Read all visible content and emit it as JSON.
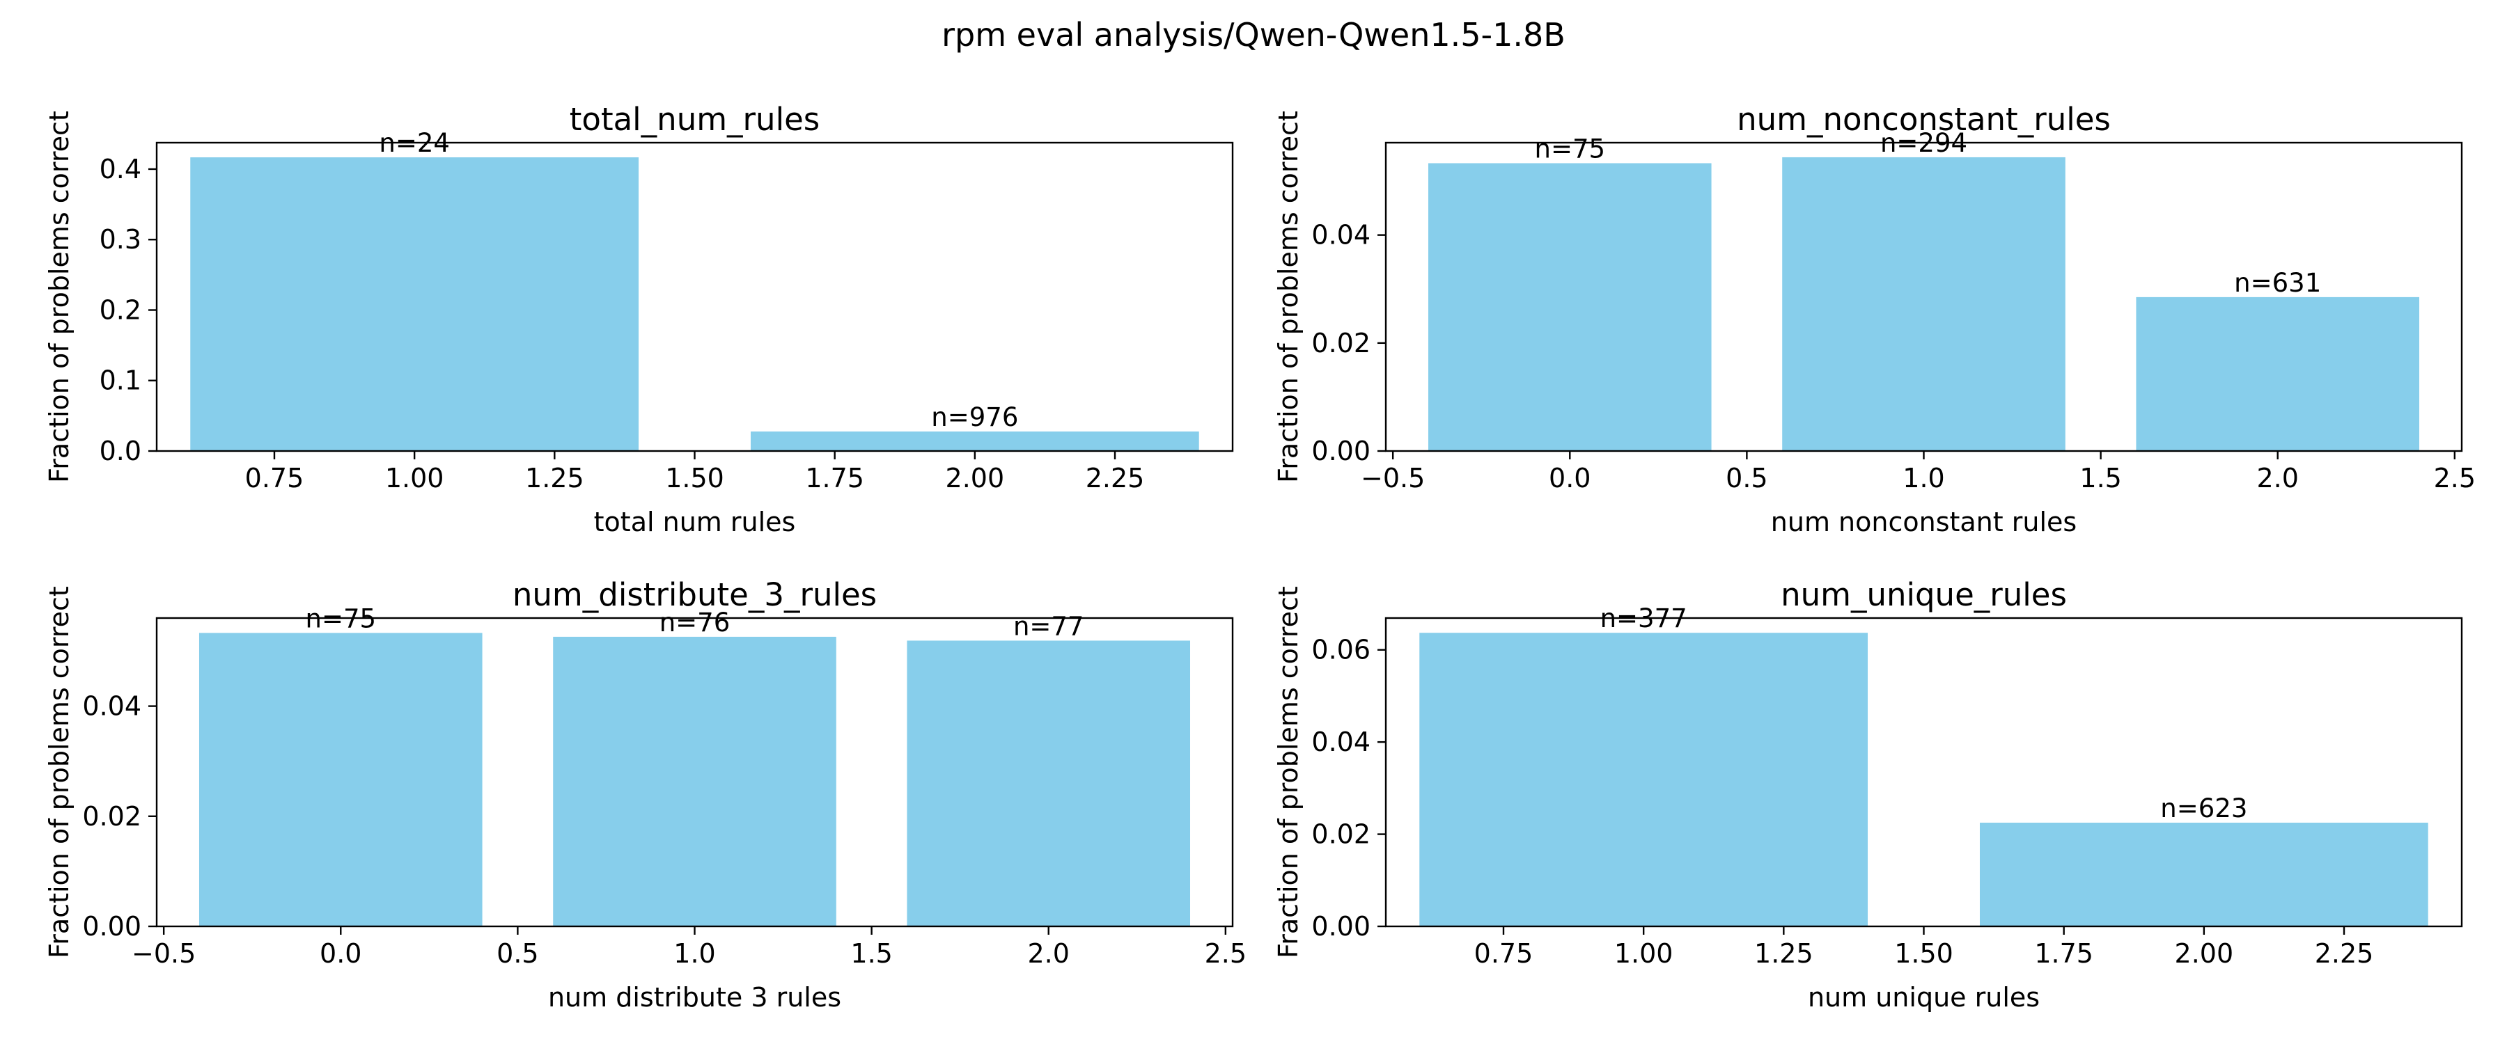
{
  "suptitle": "rpm eval analysis/Qwen-Qwen1.5-1.8B",
  "bar_color": "#87ceeb",
  "chart_data": [
    {
      "type": "bar",
      "title": "total_num_rules",
      "xlabel": "total num rules",
      "ylabel": "Fraction of problems correct",
      "x": [
        1,
        2
      ],
      "values": [
        0.4167,
        0.0277
      ],
      "data_labels": [
        "n=24",
        "n=976"
      ],
      "xlim": [
        0.54,
        2.46
      ],
      "ylim": [
        0,
        0.4375
      ],
      "xticks": [
        0.75,
        1.0,
        1.25,
        1.5,
        1.75,
        2.0,
        2.25
      ],
      "xtick_labels": [
        "0.75",
        "1.00",
        "1.25",
        "1.50",
        "1.75",
        "2.00",
        "2.25"
      ],
      "yticks": [
        0,
        0.1,
        0.2,
        0.3,
        0.4
      ],
      "ytick_labels": [
        "0.0",
        "0.1",
        "0.2",
        "0.3",
        "0.4"
      ],
      "grid": false
    },
    {
      "type": "bar",
      "title": "num_nonconstant_rules",
      "xlabel": "num nonconstant rules",
      "ylabel": "Fraction of problems correct",
      "x": [
        0,
        1,
        2
      ],
      "values": [
        0.0533,
        0.0544,
        0.0285
      ],
      "data_labels": [
        "n=75",
        "n=294",
        "n=631"
      ],
      "xlim": [
        -0.52,
        2.52
      ],
      "ylim": [
        0,
        0.0571
      ],
      "xticks": [
        -0.5,
        0.0,
        0.5,
        1.0,
        1.5,
        2.0,
        2.5
      ],
      "xtick_labels": [
        "−0.5",
        "0.0",
        "0.5",
        "1.0",
        "1.5",
        "2.0",
        "2.5"
      ],
      "yticks": [
        0,
        0.02,
        0.04
      ],
      "ytick_labels": [
        "0.00",
        "0.02",
        "0.04"
      ],
      "grid": false
    },
    {
      "type": "bar",
      "title": "num_distribute_3_rules",
      "xlabel": "num distribute 3 rules",
      "ylabel": "Fraction of problems correct",
      "x": [
        0,
        1,
        2
      ],
      "values": [
        0.0533,
        0.0526,
        0.0519
      ],
      "data_labels": [
        "n=75",
        "n=76",
        "n=77"
      ],
      "xlim": [
        -0.52,
        2.52
      ],
      "ylim": [
        0,
        0.056
      ],
      "xticks": [
        -0.5,
        0.0,
        0.5,
        1.0,
        1.5,
        2.0,
        2.5
      ],
      "xtick_labels": [
        "−0.5",
        "0.0",
        "0.5",
        "1.0",
        "1.5",
        "2.0",
        "2.5"
      ],
      "yticks": [
        0,
        0.02,
        0.04
      ],
      "ytick_labels": [
        "0.00",
        "0.02",
        "0.04"
      ],
      "grid": false
    },
    {
      "type": "bar",
      "title": "num_unique_rules",
      "xlabel": "num unique rules",
      "ylabel": "Fraction of problems correct",
      "x": [
        1,
        2
      ],
      "values": [
        0.0637,
        0.0225
      ],
      "data_labels": [
        "n=377",
        "n=623"
      ],
      "xlim": [
        0.54,
        2.46
      ],
      "ylim": [
        0,
        0.0669
      ],
      "xticks": [
        0.75,
        1.0,
        1.25,
        1.5,
        1.75,
        2.0,
        2.25
      ],
      "xtick_labels": [
        "0.75",
        "1.00",
        "1.25",
        "1.50",
        "1.75",
        "2.00",
        "2.25"
      ],
      "yticks": [
        0,
        0.02,
        0.04,
        0.06
      ],
      "ytick_labels": [
        "0.00",
        "0.02",
        "0.04",
        "0.06"
      ],
      "grid": false
    }
  ]
}
